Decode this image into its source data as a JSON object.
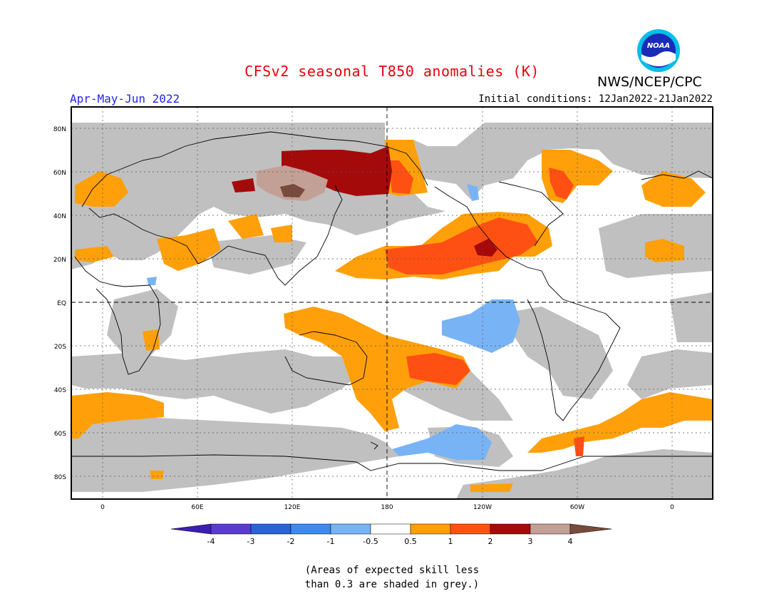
{
  "title": "CFSv2 seasonal T850 anomalies (K)",
  "organization": "NWS/NCEP/CPC",
  "logo_text": "NOAA",
  "season": "Apr-May-Jun 2022",
  "initial_conditions": "Initial conditions: 12Jan2022-21Jan2022",
  "lat_labels": [
    "80N",
    "60N",
    "40N",
    "20N",
    "EQ",
    "20S",
    "40S",
    "60S",
    "80S"
  ],
  "lon_labels": [
    "0",
    "60E",
    "120E",
    "180",
    "120W",
    "60W",
    "0"
  ],
  "colorbar": {
    "labels": [
      "-4",
      "-3",
      "-2",
      "-1",
      "-0.5",
      "0.5",
      "1",
      "2",
      "3",
      "4"
    ],
    "colors": [
      "#3c1eb4",
      "#5a3ccd",
      "#2864d2",
      "#3c8ceb",
      "#78b4f5",
      "#ffffff",
      "#ffa00a",
      "#ff5014",
      "#a50a0a",
      "#c3a096",
      "#784b3c"
    ]
  },
  "skill_mask_color": "#c0c0c0",
  "note_line1": "(Areas of expected skill less",
  "note_line2": "than 0.3 are shaded in grey.)"
}
